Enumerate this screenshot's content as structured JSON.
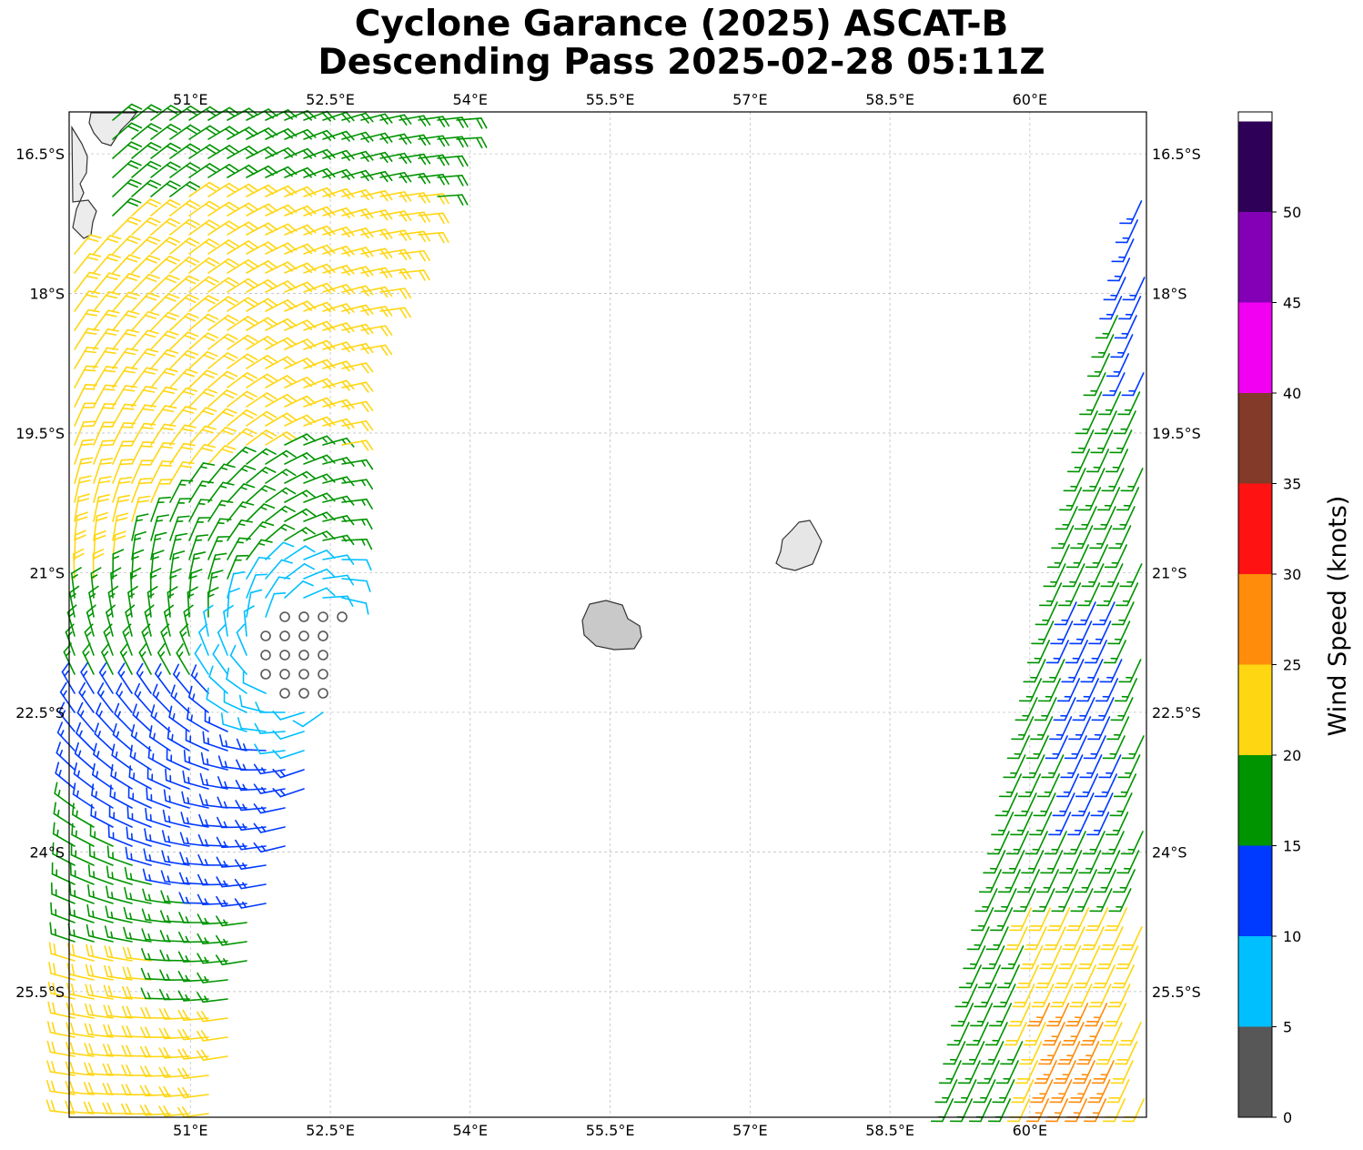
{
  "title": "Cyclone Garance (2025) ASCAT-B",
  "subtitle": "Descending Pass 2025-02-28 05:11Z",
  "map": {
    "lon_range": [
      49.7,
      61.25
    ],
    "lat_range": [
      -26.85,
      -16.05
    ],
    "lon_ticks": [
      "51°E",
      "52.5°E",
      "54°E",
      "55.5°E",
      "57°E",
      "58.5°E",
      "60°E"
    ],
    "lat_ticks": [
      "16.5°S",
      "18°S",
      "19.5°S",
      "21°S",
      "22.5°S",
      "24°S",
      "25.5°S"
    ],
    "gridlines": true
  },
  "colorbar": {
    "label": "Wind Speed (knots)",
    "ticks": [
      "0",
      "5",
      "10",
      "15",
      "20",
      "25",
      "30",
      "35",
      "40",
      "45",
      "50"
    ],
    "bins": [
      {
        "range": "0-5",
        "color": "#575757"
      },
      {
        "range": "5-10",
        "color": "#00bfff"
      },
      {
        "range": "10-15",
        "color": "#0039ff"
      },
      {
        "range": "15-20",
        "color": "#009400"
      },
      {
        "range": "20-25",
        "color": "#ffd612"
      },
      {
        "range": "25-30",
        "color": "#ff8c0a"
      },
      {
        "range": "30-35",
        "color": "#ff1212"
      },
      {
        "range": "35-40",
        "color": "#833a28"
      },
      {
        "range": "40-45",
        "color": "#f200f2"
      },
      {
        "range": "45-50",
        "color": "#8400b6"
      },
      {
        "range": "50+",
        "color": "#2f0058"
      }
    ]
  },
  "center": {
    "lon": 52.25,
    "lat": -21.85
  },
  "swaths": [
    "left-swath",
    "right-swath"
  ],
  "landmasses": [
    "madagascar-coast",
    "reunion-island",
    "mauritius-island"
  ]
}
